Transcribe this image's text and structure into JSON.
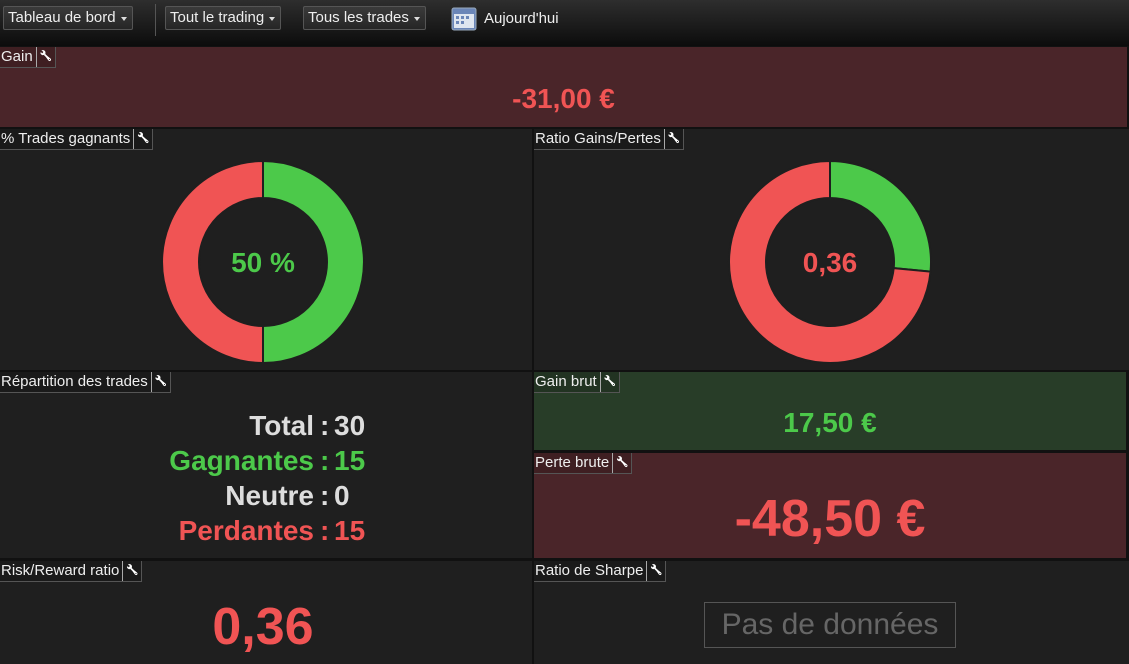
{
  "toolbar": {
    "dashboard": "Tableau de bord",
    "scope": "Tout le trading",
    "trades": "Tous les trades",
    "period": "Aujourd'hui"
  },
  "panels": {
    "gain": {
      "title": "Gain",
      "value": "-31,00 €"
    },
    "win_rate": {
      "title": "% Trades gagnants",
      "center": "50 %",
      "segments": [
        {
          "value": 15,
          "color": "#4cc94a"
        },
        {
          "value": 15,
          "color": "#f05454"
        }
      ]
    },
    "ratio": {
      "title": "Ratio Gains/Pertes",
      "center": "0,36",
      "segments": [
        {
          "value": 17.5,
          "color": "#4cc94a"
        },
        {
          "value": 48.5,
          "color": "#f05454"
        }
      ]
    },
    "distribution": {
      "title": "Répartition des trades",
      "separator": ":",
      "rows": [
        {
          "label": "Total",
          "value": "30"
        },
        {
          "label": "Gagnantes",
          "value": "15"
        },
        {
          "label": "Neutre",
          "value": "0"
        },
        {
          "label": "Perdantes",
          "value": "15"
        }
      ]
    },
    "gross_gain": {
      "title": "Gain brut",
      "value": "17,50 €"
    },
    "gross_loss": {
      "title": "Perte brute",
      "value": "-48,50 €"
    },
    "risk_reward": {
      "title": "Risk/Reward ratio",
      "value": "0,36"
    },
    "sharpe": {
      "title": "Ratio de Sharpe",
      "value": "Pas de données"
    }
  }
}
